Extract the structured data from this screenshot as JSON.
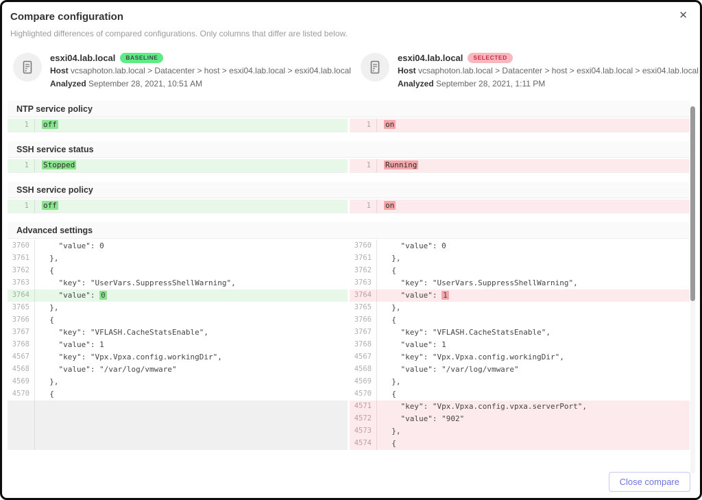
{
  "dialog": {
    "title": "Compare configuration",
    "subtitle": "Highlighted differences of compared configurations. Only columns that differ are listed below.",
    "close_icon": "✕"
  },
  "hosts": {
    "baseline": {
      "name": "esxi04.lab.local",
      "badge": "BASELINE",
      "path_label": "Host",
      "path": " vcsaphoton.lab.local > Datacenter > host > esxi04.lab.local > esxi04.lab.local",
      "analyzed_label": "Analyzed",
      "analyzed": " September 28, 2021, 10:51 AM"
    },
    "selected": {
      "name": "esxi04.lab.local",
      "badge": "SELECTED",
      "path_label": "Host",
      "path": " vcsaphoton.lab.local > Datacenter > host > esxi04.lab.local > esxi04.lab.local",
      "analyzed_label": "Analyzed",
      "analyzed": " September 28, 2021, 1:11 PM"
    }
  },
  "sections": [
    {
      "title": "NTP service policy",
      "left": {
        "line": "1",
        "value": "off"
      },
      "right": {
        "line": "1",
        "value": "on"
      }
    },
    {
      "title": "SSH service status",
      "left": {
        "line": "1",
        "value": "Stopped"
      },
      "right": {
        "line": "1",
        "value": "Running"
      }
    },
    {
      "title": "SSH service policy",
      "left": {
        "line": "1",
        "value": "off"
      },
      "right": {
        "line": "1",
        "value": "on"
      }
    }
  ],
  "advanced": {
    "title": "Advanced settings",
    "left_lines": [
      {
        "num": "3760",
        "text": "    \"value\": 0"
      },
      {
        "num": "3761",
        "text": "  },"
      },
      {
        "num": "3762",
        "text": "  {"
      },
      {
        "num": "3763",
        "text": "    \"key\": \"UserVars.SuppressShellWarning\","
      },
      {
        "num": "3764",
        "type": "changed",
        "pre": "    \"value\": ",
        "hl": "0"
      },
      {
        "num": "3765",
        "text": "  },"
      },
      {
        "num": "3766",
        "text": "  {"
      },
      {
        "num": "3767",
        "text": "    \"key\": \"VFLASH.CacheStatsEnable\","
      },
      {
        "num": "3768",
        "text": "    \"value\": 1"
      },
      {
        "num": "4567",
        "text": "    \"key\": \"Vpx.Vpxa.config.workingDir\","
      },
      {
        "num": "4568",
        "text": "    \"value\": \"/var/log/vmware\""
      },
      {
        "num": "4569",
        "text": "  },"
      },
      {
        "num": "4570",
        "text": "  {"
      },
      {
        "type": "filler"
      },
      {
        "type": "filler"
      },
      {
        "type": "filler"
      },
      {
        "type": "filler"
      }
    ],
    "right_lines": [
      {
        "num": "3760",
        "text": "    \"value\": 0"
      },
      {
        "num": "3761",
        "text": "  },"
      },
      {
        "num": "3762",
        "text": "  {"
      },
      {
        "num": "3763",
        "text": "    \"key\": \"UserVars.SuppressShellWarning\","
      },
      {
        "num": "3764",
        "type": "changed",
        "pre": "    \"value\": ",
        "hl": "1"
      },
      {
        "num": "3765",
        "text": "  },"
      },
      {
        "num": "3766",
        "text": "  {"
      },
      {
        "num": "3767",
        "text": "    \"key\": \"VFLASH.CacheStatsEnable\","
      },
      {
        "num": "3768",
        "text": "    \"value\": 1"
      },
      {
        "num": "4567",
        "text": "    \"key\": \"Vpx.Vpxa.config.workingDir\","
      },
      {
        "num": "4568",
        "text": "    \"value\": \"/var/log/vmware\""
      },
      {
        "num": "4569",
        "text": "  },"
      },
      {
        "num": "4570",
        "text": "  {"
      },
      {
        "num": "4571",
        "type": "added",
        "text": "    \"key\": \"Vpx.Vpxa.config.vpxa.serverPort\","
      },
      {
        "num": "4572",
        "type": "added",
        "text": "    \"value\": \"902\""
      },
      {
        "num": "4573",
        "type": "added",
        "text": "  },"
      },
      {
        "num": "4574",
        "type": "added",
        "text": "  {"
      }
    ]
  },
  "footer": {
    "close_button": "Close compare"
  },
  "colors": {
    "accent_purple": "#6c74e4",
    "diff_green_row": "#e7f8e9",
    "diff_green_token": "#8be38f",
    "diff_red_row": "#fdeaec",
    "diff_red_token": "#f4a6a9",
    "badge_green": "#60e987",
    "badge_pink": "#f8b7bf",
    "filler_gray": "#f0f0f0"
  }
}
